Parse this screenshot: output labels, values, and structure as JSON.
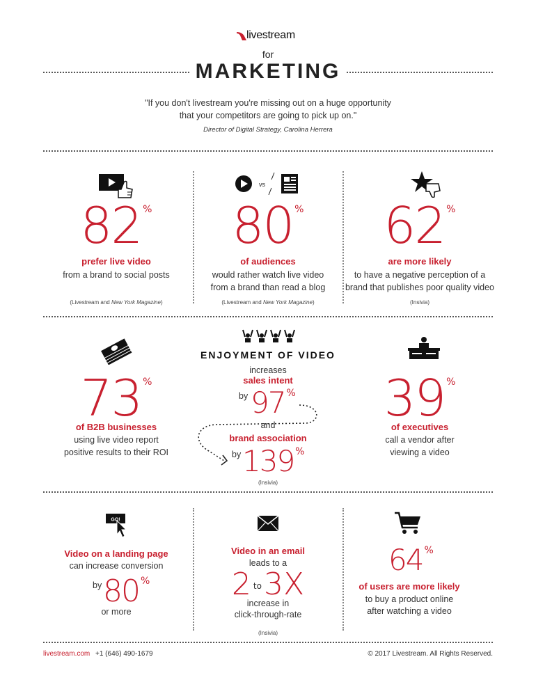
{
  "header": {
    "brand": "livestream",
    "for_label": "for",
    "title": "MARKETING",
    "quote": "\"If you don't livestream you're missing out on a huge opportunity that your competitors are going to pick up on.\"",
    "quote_line1": "\"If you don't livestream you're missing out on a huge opportunity",
    "quote_line2": "that your competitors are going to pick up on.\"",
    "attribution": "Director of Digital Strategy, Carolina Herrera"
  },
  "row1": [
    {
      "number": "82",
      "pct": "%",
      "lead": "prefer live video",
      "line1": "from a brand to social posts",
      "line2": "",
      "source_a": "(Livestream and ",
      "source_b": "New York Magazine",
      "source_c": ")",
      "icon": "video-thumbs-up-icon"
    },
    {
      "number": "80",
      "pct": "%",
      "lead": "of audiences",
      "line1": "would rather watch live video",
      "line2": "from a brand than read a blog",
      "source_a": "(Livestream and ",
      "source_b": "New York Magazine",
      "source_c": ")",
      "icon": "video-vs-blog-icon",
      "vs": "vs"
    },
    {
      "number": "62",
      "pct": "%",
      "lead": "are more likely",
      "line1": "to have a negative perception of a",
      "line2": "brand that publishes poor quality video",
      "source_a": "(Insivia)",
      "source_b": "",
      "source_c": "",
      "icon": "star-thumbs-down-icon"
    }
  ],
  "row2": {
    "left": {
      "number": "73",
      "pct": "%",
      "lead": "of B2B businesses",
      "line1": "using live video report",
      "line2": "positive results to their ROI",
      "icon": "money-stack-icon"
    },
    "middle": {
      "title": "ENJOYMENT OF VIDEO",
      "increases": "increases",
      "sales_intent": "sales intent",
      "by1": "by",
      "num1": "97",
      "pct1": "%",
      "and": "and",
      "brand_assoc": "brand association",
      "by2": "by",
      "num2": "139",
      "pct2": "%",
      "source": "(Insivia)",
      "icon": "audience-cheering-icon"
    },
    "right": {
      "number": "39",
      "pct": "%",
      "lead": "of executives",
      "line1": "call a vendor after",
      "line2": "viewing a video",
      "icon": "executive-desk-icon"
    }
  },
  "row3": {
    "left": {
      "lead": "Video on a landing page",
      "line1": "can increase conversion",
      "by": "by",
      "number": "80",
      "pct": "%",
      "line2": "or more",
      "icon": "go-button-cursor-icon",
      "go": "GO!"
    },
    "middle": {
      "lead": "Video in an email",
      "line1": "leads to a",
      "num_a": "2",
      "to": "to",
      "num_b": "3",
      "x": "X",
      "line2": "increase in",
      "line3": "click-through-rate",
      "source": "(Insivia)",
      "icon": "envelope-icon"
    },
    "right": {
      "number": "64",
      "pct": "%",
      "lead": "of users are more likely",
      "line1": "to buy a product online",
      "line2": "after watching a video",
      "icon": "shopping-cart-icon"
    }
  },
  "footer": {
    "site": "livestream.com",
    "phone": "+1 (646) 490-1679",
    "copyright": "© 2017 Livestream. All Rights Reserved."
  },
  "colors": {
    "accent": "#c8202f",
    "text": "#222222"
  }
}
